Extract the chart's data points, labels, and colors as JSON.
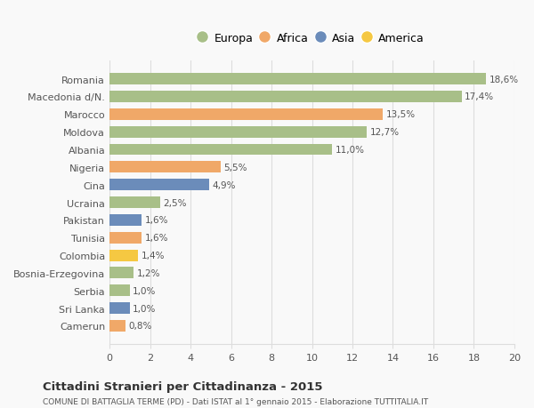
{
  "categories": [
    "Camerun",
    "Sri Lanka",
    "Serbia",
    "Bosnia-Erzegovina",
    "Colombia",
    "Tunisia",
    "Pakistan",
    "Ucraina",
    "Cina",
    "Nigeria",
    "Albania",
    "Moldova",
    "Marocco",
    "Macedonia d/N.",
    "Romania"
  ],
  "values": [
    0.8,
    1.0,
    1.0,
    1.2,
    1.4,
    1.6,
    1.6,
    2.5,
    4.9,
    5.5,
    11.0,
    12.7,
    13.5,
    17.4,
    18.6
  ],
  "labels": [
    "0,8%",
    "1,0%",
    "1,0%",
    "1,2%",
    "1,4%",
    "1,6%",
    "1,6%",
    "2,5%",
    "4,9%",
    "5,5%",
    "11,0%",
    "12,7%",
    "13,5%",
    "17,4%",
    "18,6%"
  ],
  "colors": [
    "#f0a868",
    "#6b8cba",
    "#a8bf88",
    "#a8bf88",
    "#f5c842",
    "#f0a868",
    "#6b8cba",
    "#a8bf88",
    "#6b8cba",
    "#f0a868",
    "#a8bf88",
    "#a8bf88",
    "#f0a868",
    "#a8bf88",
    "#a8bf88"
  ],
  "legend_labels": [
    "Europa",
    "Africa",
    "Asia",
    "America"
  ],
  "legend_colors": [
    "#a8bf88",
    "#f0a868",
    "#6b8cba",
    "#f5c842"
  ],
  "title": "Cittadini Stranieri per Cittadinanza - 2015",
  "subtitle": "COMUNE DI BATTAGLIA TERME (PD) - Dati ISTAT al 1° gennaio 2015 - Elaborazione TUTTITALIA.IT",
  "xlim": [
    0,
    20
  ],
  "xticks": [
    0,
    2,
    4,
    6,
    8,
    10,
    12,
    14,
    16,
    18,
    20
  ],
  "background_color": "#f9f9f9",
  "bar_height": 0.65,
  "grid_color": "#dddddd"
}
